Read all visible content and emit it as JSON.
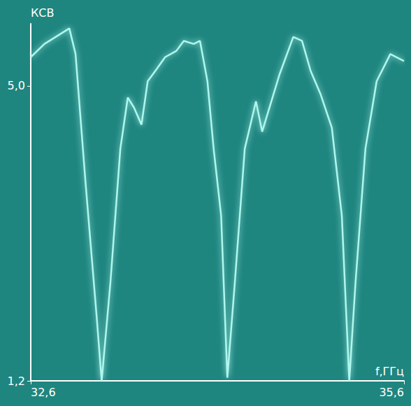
{
  "chart_data": {
    "type": "line",
    "x_label": "f,ГГц",
    "y_label": "КСВ",
    "x": [
      32.6,
      32.71,
      32.91,
      32.96,
      33.04,
      33.13,
      33.17,
      33.24,
      33.32,
      33.38,
      33.43,
      33.49,
      33.54,
      33.6,
      33.68,
      33.77,
      33.83,
      33.91,
      33.96,
      34.02,
      34.07,
      34.13,
      34.18,
      34.24,
      34.32,
      34.41,
      34.46,
      34.6,
      34.71,
      34.78,
      34.85,
      34.93,
      35.02,
      35.1,
      35.16,
      35.21,
      35.29,
      35.38,
      35.49,
      35.6
    ],
    "values": [
      5.37,
      5.54,
      5.74,
      5.41,
      3.76,
      2.02,
      1.2,
      2.46,
      4.19,
      4.85,
      4.72,
      4.5,
      5.06,
      5.19,
      5.37,
      5.45,
      5.58,
      5.54,
      5.58,
      5.06,
      4.19,
      3.33,
      1.24,
      2.46,
      4.19,
      4.8,
      4.41,
      5.15,
      5.63,
      5.58,
      5.19,
      4.89,
      4.46,
      3.33,
      1.2,
      2.46,
      4.19,
      5.06,
      5.41,
      5.32
    ],
    "color": "#aef7ee",
    "xlim": [
      32.6,
      35.6
    ],
    "ylim": [
      1.2,
      5.8
    ],
    "xticks": [
      {
        "value": 32.6,
        "label": "32,6"
      },
      {
        "value": 35.6,
        "label": "35,6"
      }
    ],
    "yticks": [
      {
        "value": 1.2,
        "label": "1,2"
      },
      {
        "value": 5.0,
        "label": "5,0"
      }
    ],
    "grid": false
  }
}
